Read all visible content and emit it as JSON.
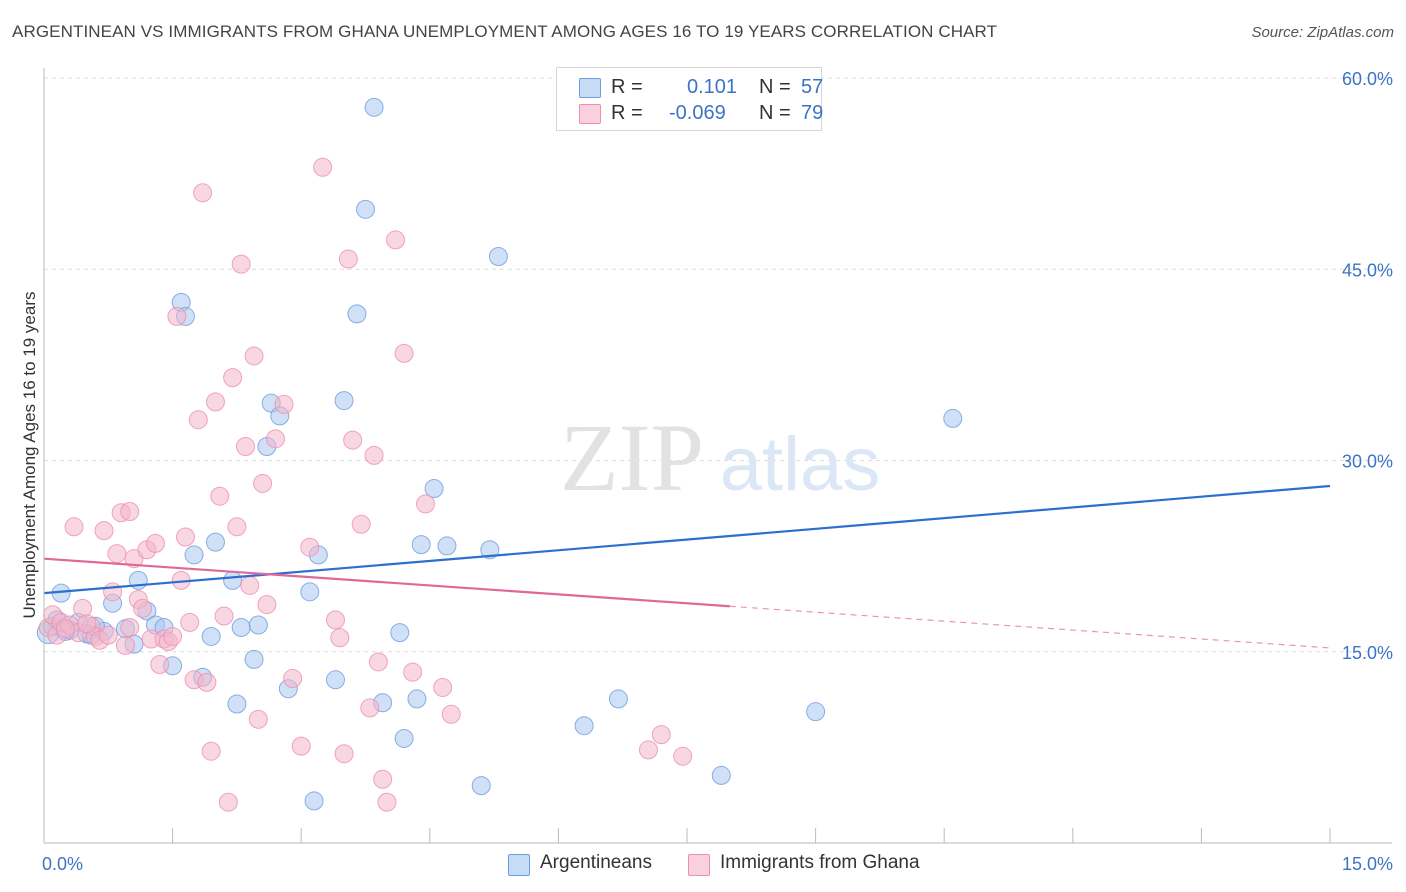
{
  "title": "ARGENTINEAN VS IMMIGRANTS FROM GHANA UNEMPLOYMENT AMONG AGES 16 TO 19 YEARS CORRELATION CHART",
  "source": "Source: ZipAtlas.com",
  "watermark": {
    "zip": "ZIP",
    "atlas": "atlas"
  },
  "legend": {
    "rows": [
      {
        "r_label": "R =",
        "r_value": "0.101",
        "n_label": "N =",
        "n_value": "57",
        "color": "#a9c6ee"
      },
      {
        "r_label": "R =",
        "r_value": "-0.069",
        "n_label": "N =",
        "n_value": "79",
        "color": "#f4b6ca"
      }
    ]
  },
  "bottom_legend": [
    {
      "label": "Argentineans",
      "color": "#a9c6ee"
    },
    {
      "label": "Immigrants from Ghana",
      "color": "#f4b6ca"
    }
  ],
  "chart_data": {
    "type": "scatter",
    "xlabel": "",
    "ylabel": "Unemployment Among Ages 16 to 19 years",
    "xlim": [
      0,
      15
    ],
    "ylim": [
      0,
      60
    ],
    "x_tick_labels": [
      {
        "value": 0,
        "label": "0.0%"
      },
      {
        "value": 15,
        "label": "15.0%"
      }
    ],
    "y_tick_labels": [
      {
        "value": 15,
        "label": "15.0%"
      },
      {
        "value": 30,
        "label": "30.0%"
      },
      {
        "value": 45,
        "label": "45.0%"
      },
      {
        "value": 60,
        "label": "60.0%"
      }
    ],
    "grid": true,
    "series": [
      {
        "name": "Argentineans",
        "color": "#6e9ee0",
        "fill": "#a9c6ee",
        "trend": {
          "x0": 0,
          "y0": 19.6,
          "x1": 15,
          "y1": 28.0,
          "solid_until": 15
        },
        "points": [
          [
            0.05,
            16.5
          ],
          [
            0.1,
            17.0
          ],
          [
            0.2,
            19.6
          ],
          [
            0.3,
            16.7
          ],
          [
            0.4,
            17.3
          ],
          [
            0.5,
            16.4
          ],
          [
            0.55,
            16.3
          ],
          [
            0.7,
            16.6
          ],
          [
            0.8,
            18.8
          ],
          [
            0.95,
            16.8
          ],
          [
            1.05,
            15.6
          ],
          [
            1.1,
            20.6
          ],
          [
            1.2,
            18.2
          ],
          [
            1.3,
            17.1
          ],
          [
            1.4,
            16.9
          ],
          [
            1.5,
            13.9
          ],
          [
            1.6,
            42.4
          ],
          [
            1.65,
            41.3
          ],
          [
            1.75,
            22.6
          ],
          [
            1.85,
            13.0
          ],
          [
            1.95,
            16.2
          ],
          [
            2.0,
            23.6
          ],
          [
            2.2,
            20.6
          ],
          [
            2.25,
            10.9
          ],
          [
            2.3,
            16.9
          ],
          [
            2.45,
            14.4
          ],
          [
            2.5,
            17.1
          ],
          [
            2.6,
            31.1
          ],
          [
            2.65,
            34.5
          ],
          [
            2.75,
            33.5
          ],
          [
            2.85,
            12.1
          ],
          [
            3.1,
            19.7
          ],
          [
            3.2,
            22.6
          ],
          [
            3.15,
            3.3
          ],
          [
            3.4,
            12.8
          ],
          [
            3.5,
            34.7
          ],
          [
            3.65,
            41.5
          ],
          [
            3.75,
            49.7
          ],
          [
            3.85,
            57.7
          ],
          [
            3.95,
            11.0
          ],
          [
            4.15,
            16.5
          ],
          [
            4.2,
            8.2
          ],
          [
            4.35,
            11.3
          ],
          [
            4.4,
            23.4
          ],
          [
            4.55,
            27.8
          ],
          [
            4.7,
            23.3
          ],
          [
            5.1,
            4.5
          ],
          [
            5.2,
            23.0
          ],
          [
            5.3,
            46.0
          ],
          [
            6.3,
            9.2
          ],
          [
            6.7,
            11.3
          ],
          [
            7.9,
            5.3
          ],
          [
            9.0,
            10.3
          ],
          [
            10.6,
            33.3
          ],
          [
            0.15,
            17.5
          ],
          [
            0.6,
            17.0
          ],
          [
            0.25,
            16.6
          ]
        ]
      },
      {
        "name": "Immigrants from Ghana",
        "color": "#ee8fb0",
        "fill": "#f4b6ca",
        "trend": {
          "x0": 0,
          "y0": 22.3,
          "x1": 15,
          "y1": 15.3,
          "solid_until": 8.0
        },
        "points": [
          [
            0.05,
            16.9
          ],
          [
            0.1,
            17.9
          ],
          [
            0.15,
            16.3
          ],
          [
            0.2,
            17.3
          ],
          [
            0.3,
            17.1
          ],
          [
            0.35,
            24.8
          ],
          [
            0.4,
            16.5
          ],
          [
            0.45,
            18.4
          ],
          [
            0.55,
            17.0
          ],
          [
            0.6,
            16.2
          ],
          [
            0.65,
            15.9
          ],
          [
            0.7,
            24.5
          ],
          [
            0.75,
            16.3
          ],
          [
            0.8,
            19.7
          ],
          [
            0.85,
            22.7
          ],
          [
            0.9,
            25.9
          ],
          [
            0.95,
            15.5
          ],
          [
            1.0,
            26.0
          ],
          [
            1.05,
            22.3
          ],
          [
            1.1,
            19.1
          ],
          [
            1.15,
            18.4
          ],
          [
            1.2,
            23.0
          ],
          [
            1.25,
            16.0
          ],
          [
            1.3,
            23.5
          ],
          [
            1.35,
            14.0
          ],
          [
            1.4,
            16.0
          ],
          [
            1.45,
            15.8
          ],
          [
            1.5,
            16.2
          ],
          [
            1.55,
            41.3
          ],
          [
            1.6,
            20.6
          ],
          [
            1.65,
            24.0
          ],
          [
            1.7,
            17.3
          ],
          [
            1.75,
            12.8
          ],
          [
            1.8,
            33.2
          ],
          [
            1.85,
            51.0
          ],
          [
            1.9,
            12.6
          ],
          [
            1.95,
            7.2
          ],
          [
            2.0,
            34.6
          ],
          [
            2.05,
            27.2
          ],
          [
            2.1,
            17.8
          ],
          [
            2.15,
            3.2
          ],
          [
            2.2,
            36.5
          ],
          [
            2.25,
            24.8
          ],
          [
            2.3,
            45.4
          ],
          [
            2.35,
            31.1
          ],
          [
            2.4,
            20.2
          ],
          [
            2.45,
            38.2
          ],
          [
            2.5,
            9.7
          ],
          [
            2.55,
            28.2
          ],
          [
            2.6,
            18.7
          ],
          [
            2.7,
            31.7
          ],
          [
            2.8,
            34.4
          ],
          [
            2.9,
            12.9
          ],
          [
            3.0,
            7.6
          ],
          [
            3.1,
            23.2
          ],
          [
            3.25,
            53.0
          ],
          [
            3.4,
            17.5
          ],
          [
            3.45,
            16.1
          ],
          [
            3.5,
            7.0
          ],
          [
            3.55,
            45.8
          ],
          [
            3.6,
            31.6
          ],
          [
            3.7,
            25.0
          ],
          [
            3.8,
            10.6
          ],
          [
            3.85,
            30.4
          ],
          [
            3.9,
            14.2
          ],
          [
            3.95,
            5.0
          ],
          [
            4.0,
            3.2
          ],
          [
            4.1,
            47.3
          ],
          [
            4.2,
            38.4
          ],
          [
            4.3,
            13.4
          ],
          [
            4.45,
            26.6
          ],
          [
            4.65,
            12.2
          ],
          [
            4.75,
            10.1
          ],
          [
            7.05,
            7.3
          ],
          [
            7.2,
            8.5
          ],
          [
            7.45,
            6.8
          ],
          [
            0.5,
            17.2
          ],
          [
            0.25,
            16.8
          ],
          [
            1.0,
            16.9
          ]
        ]
      }
    ]
  }
}
